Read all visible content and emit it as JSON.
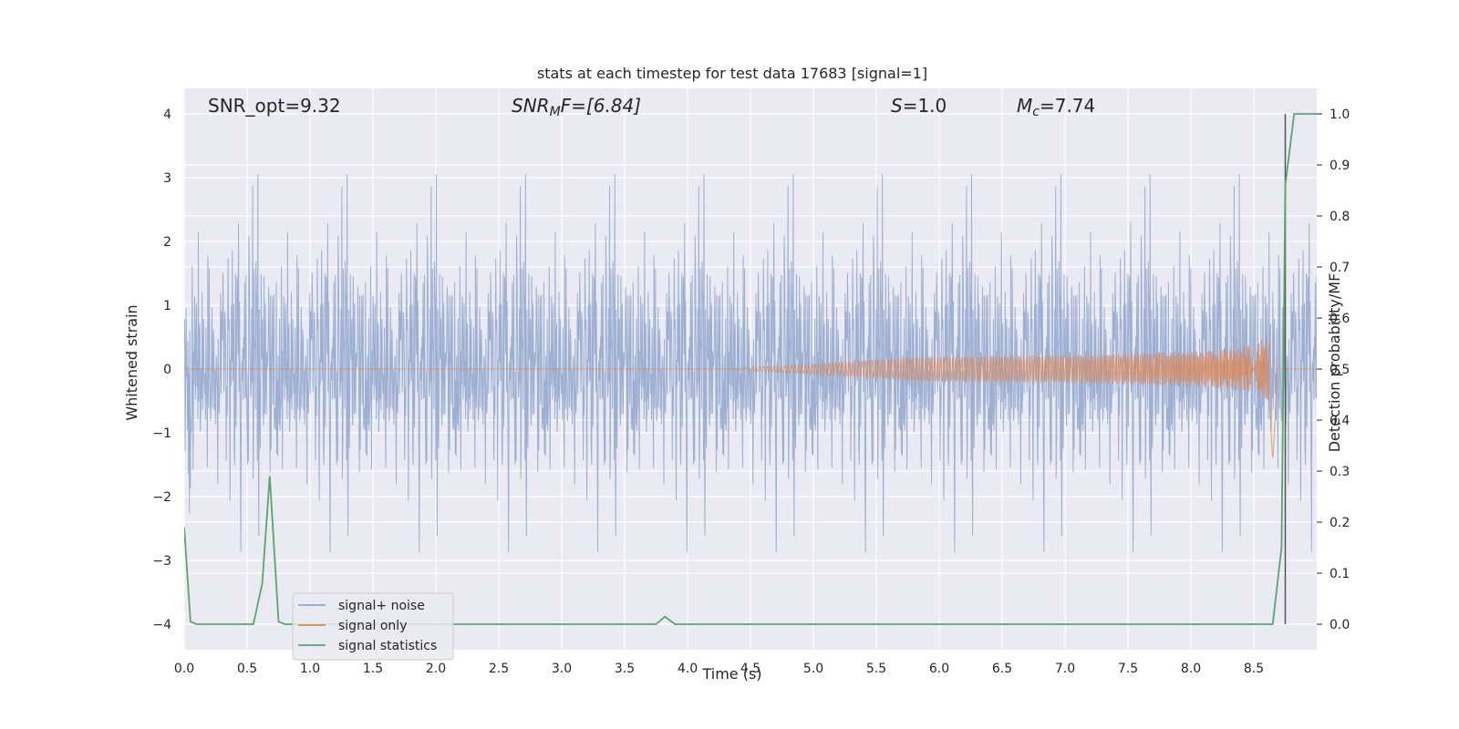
{
  "chart_data": {
    "type": "line",
    "title": "stats at each timestep for test data 17683 [signal=1]",
    "xlabel": "Time (s)",
    "ylabel": "Whitened strain",
    "y2label": "Detection probability/MF",
    "xlim": [
      0.0,
      9.0
    ],
    "ylim": [
      -4.4,
      4.4
    ],
    "y2lim": [
      -0.05,
      1.05
    ],
    "grid": true,
    "legend_position": "lower-left",
    "xticks": [
      "0.0",
      "0.5",
      "1.0",
      "1.5",
      "2.0",
      "2.5",
      "3.0",
      "3.5",
      "4.0",
      "4.5",
      "5.0",
      "5.5",
      "6.0",
      "6.5",
      "7.0",
      "7.5",
      "8.0",
      "8.5"
    ],
    "xtick_values": [
      0.0,
      0.5,
      1.0,
      1.5,
      2.0,
      2.5,
      3.0,
      3.5,
      4.0,
      4.5,
      5.0,
      5.5,
      6.0,
      6.5,
      7.0,
      7.5,
      8.0,
      8.5
    ],
    "yticks": [
      "4",
      "3",
      "2",
      "1",
      "0",
      "−1",
      "−2",
      "−3",
      "−4"
    ],
    "ytick_values": [
      4,
      3,
      2,
      1,
      0,
      -1,
      -2,
      -3,
      -4
    ],
    "y2ticks": [
      "1.0",
      "0.9",
      "0.8",
      "0.7",
      "0.6",
      "0.5",
      "0.4",
      "0.3",
      "0.2",
      "0.1",
      "0.0"
    ],
    "y2tick_values": [
      1.0,
      0.9,
      0.8,
      0.7,
      0.6,
      0.5,
      0.4,
      0.3,
      0.2,
      0.1,
      0.0
    ],
    "annotations": {
      "snr_opt": "SNR_opt=9.32",
      "snr_mf_base": "SNR",
      "snr_mf_sub": "M",
      "snr_mf_rest": "F=[6.84]",
      "s_label": "S",
      "s_value": "=1.0",
      "mc_label": "M",
      "mc_sub": "c",
      "mc_value": "=7.74"
    },
    "vertical_line_x": 8.75,
    "series": [
      {
        "name": "signal+ noise",
        "color": "#8fa4cc",
        "axis": "left",
        "description_values": "whitened noise, approx ±2.6 sigma envelope with spikes to ~4"
      },
      {
        "name": "signal only",
        "color": "#dd8452",
        "axis": "left",
        "chirp": {
          "start": 4.3,
          "merger": 8.65,
          "peak_amplitude": 1.05,
          "min_amplitude": -1.45
        }
      },
      {
        "name": "signal statistics",
        "color": "#55a868",
        "axis": "right",
        "x": [
          0.0,
          0.05,
          0.1,
          0.15,
          0.2,
          0.5,
          0.55,
          0.62,
          0.68,
          0.75,
          0.8,
          0.85,
          1.0,
          3.7,
          3.75,
          3.82,
          3.9,
          4.0,
          8.6,
          8.65,
          8.72,
          8.75,
          8.82,
          8.9,
          9.0
        ],
        "y": [
          0.19,
          0.005,
          0.0,
          0.0,
          0.0,
          0.0,
          0.0,
          0.08,
          0.29,
          0.005,
          0.0,
          0.0,
          0.0,
          0.0,
          0.0,
          0.015,
          0.0,
          0.0,
          0.0,
          0.0,
          0.15,
          0.86,
          1.0,
          1.0,
          1.0
        ]
      }
    ]
  }
}
